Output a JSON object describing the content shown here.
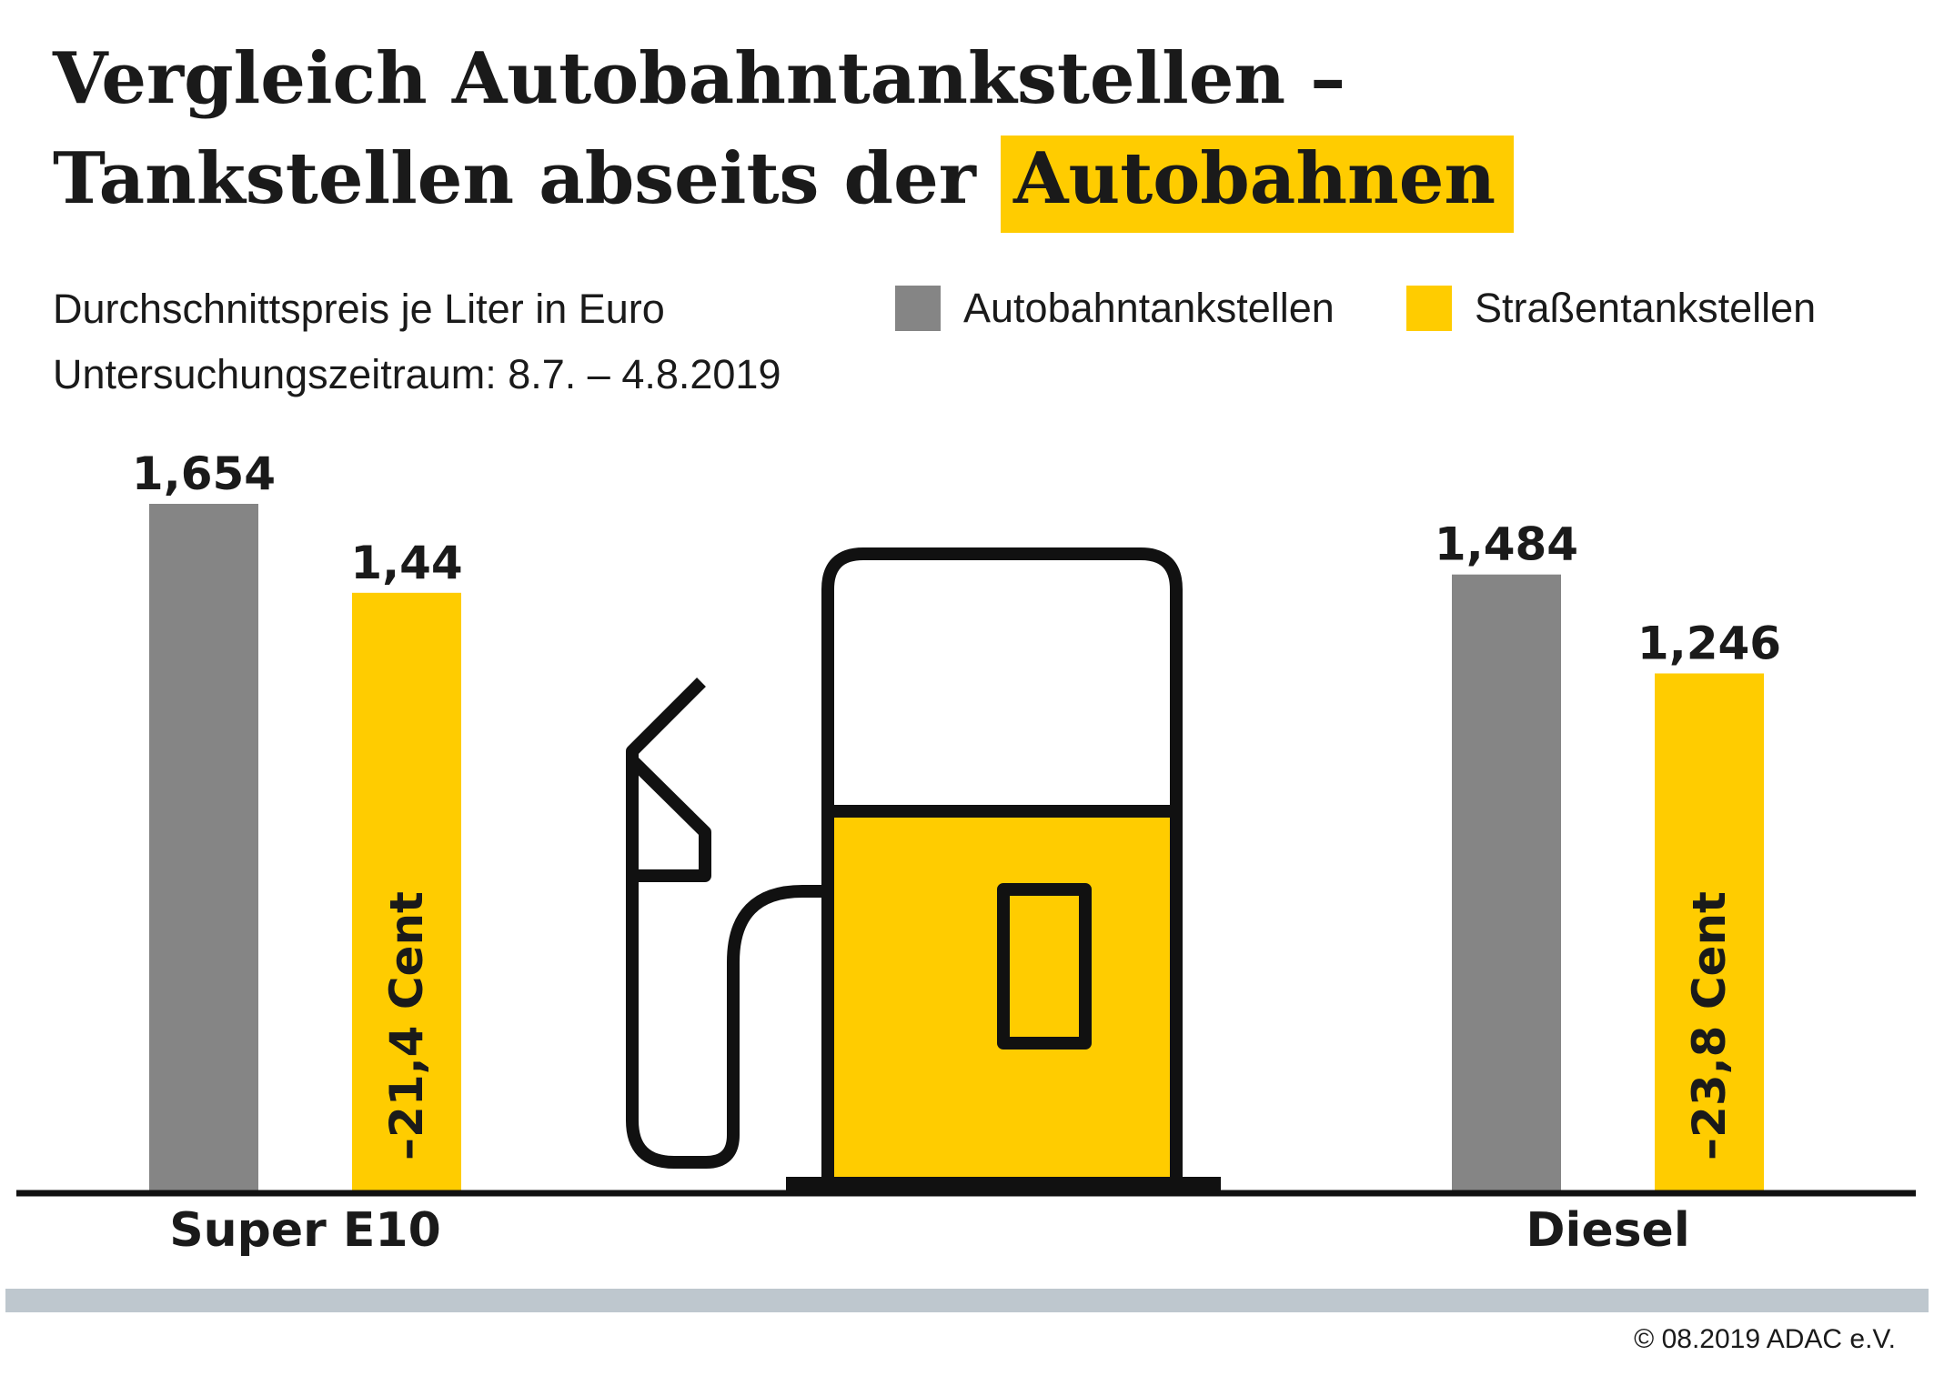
{
  "title": {
    "line1": "Vergleich Autobahntankstellen –",
    "line2_prefix": "Tankstellen abseits der",
    "line2_highlight": "Autobahnen"
  },
  "subtitle": {
    "line1": "Durchschnittspreis je Liter in Euro",
    "line2": "Untersuchungszeitraum: 8.7. – 4.8.2019"
  },
  "colors": {
    "autobahn": "#858585",
    "strasse": "#FFCC00",
    "text": "#1a1a1a",
    "footer_bar": "#BEC7CE"
  },
  "chart_data": {
    "type": "bar",
    "categories": [
      "Super E10",
      "Diesel"
    ],
    "series": [
      {
        "name": "Autobahntankstellen",
        "values": [
          1.654,
          1.484
        ],
        "labels": [
          "1,654",
          "1,484"
        ]
      },
      {
        "name": "Straßentankstellen",
        "values": [
          1.44,
          1.246
        ],
        "labels": [
          "1,44",
          "1,246"
        ]
      }
    ],
    "differences": [
      "–21,4 Cent",
      "–23,8 Cent"
    ],
    "ylim": [
      0,
      1.654
    ],
    "legend": "top-right",
    "grid": false
  },
  "icon": "fuel-pump-icon",
  "credit": "© 08.2019  ADAC e.V."
}
